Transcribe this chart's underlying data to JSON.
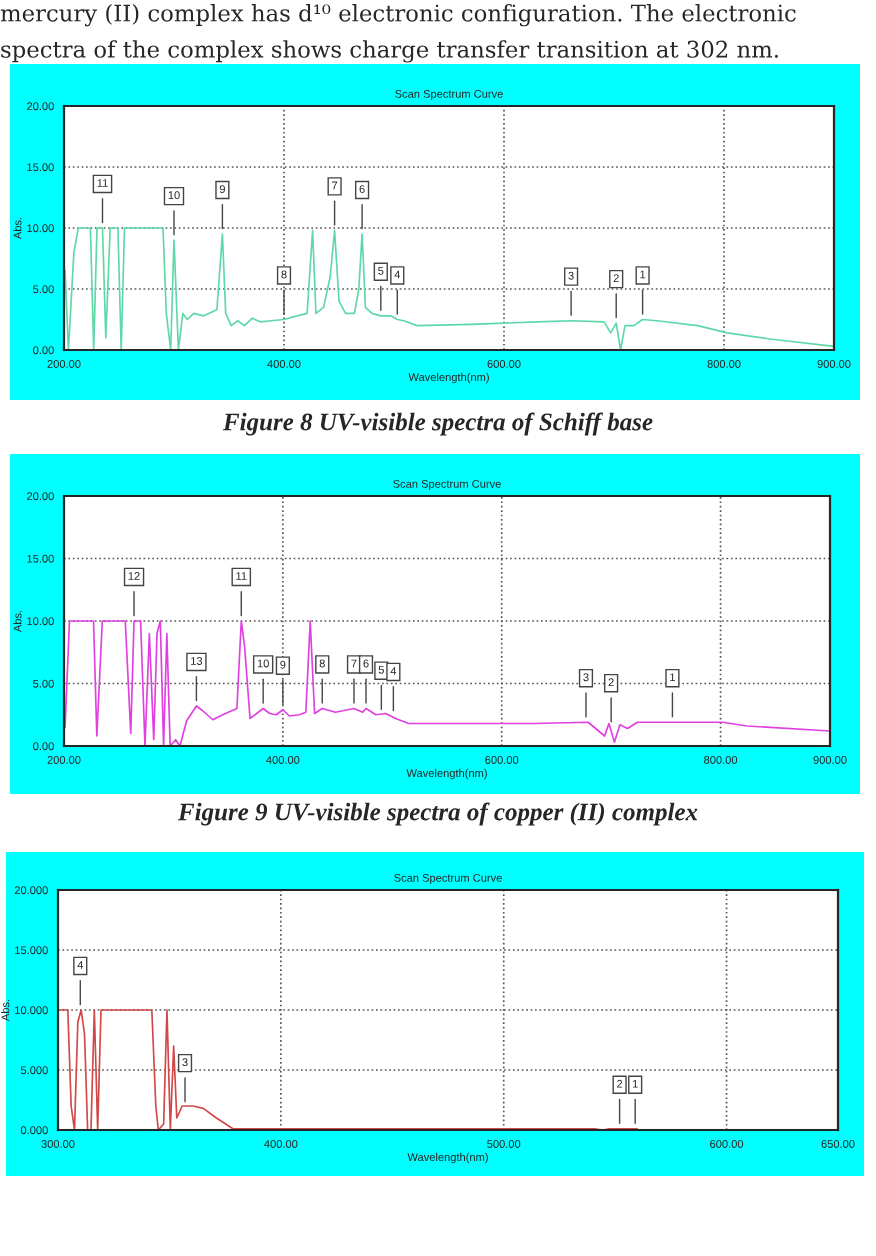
{
  "chart_data": [
    {
      "type": "line",
      "title": "Scan Spectrum Curve",
      "xlabel": "Wavelength(nm)",
      "ylabel": "Abs.",
      "xlim": [
        200,
        900
      ],
      "ylim": [
        0,
        20
      ],
      "xticks": [
        {
          "value": 200,
          "label": "200.00"
        },
        {
          "value": 400,
          "label": "400.00"
        },
        {
          "value": 600,
          "label": "600.00"
        },
        {
          "value": 800,
          "label": "800.00"
        },
        {
          "value": 900,
          "label": "900.00"
        }
      ],
      "yticks": [
        {
          "value": 0,
          "label": "0.00"
        },
        {
          "value": 5,
          "label": "5.00"
        },
        {
          "value": 10,
          "label": "10.00"
        },
        {
          "value": 15,
          "label": "15.00"
        },
        {
          "value": 20,
          "label": "20.00"
        }
      ],
      "grid": true,
      "series": [
        {
          "color": "#5fd8a8",
          "x": [
            201,
            204,
            209,
            213,
            224,
            227,
            230,
            235,
            238,
            242,
            249,
            252,
            255,
            290,
            293,
            297,
            300,
            304,
            308,
            312,
            318,
            327,
            339,
            344,
            347,
            352,
            358,
            364,
            371,
            379,
            388,
            400,
            412,
            421,
            426,
            429,
            436,
            442,
            446,
            450,
            456,
            464,
            468,
            471,
            474,
            480,
            488,
            497,
            503,
            509,
            521,
            570,
            630,
            661,
            691,
            697,
            702,
            706,
            710,
            718,
            726,
            739,
            776,
            803,
            842,
            900
          ],
          "values": [
            6.5,
            0,
            8,
            10,
            10,
            0,
            10,
            10,
            1,
            10,
            10,
            0,
            10,
            10,
            3,
            0,
            9,
            0,
            3,
            2.5,
            3,
            2.8,
            3.3,
            9.5,
            3,
            2,
            2.4,
            2,
            2.6,
            2.3,
            2.4,
            2.5,
            2.8,
            3,
            9.8,
            3,
            3.5,
            6,
            9.8,
            4,
            3,
            3,
            5,
            9.5,
            3.5,
            3,
            2.8,
            2.8,
            2.5,
            2.4,
            2,
            2.1,
            2.3,
            2.4,
            2.3,
            1.4,
            2.2,
            0,
            2,
            2,
            2.5,
            2.4,
            2,
            1.4,
            0.9,
            0.3
          ]
        }
      ],
      "annotations": [
        "mercury (II) complex has d¹⁰ electronic configuration. The electronic spectra of the complex shows charge transfer transition at 302 nm.",
        "Figure 8 UV-visible spectra of Schiff base",
        {
          "text": "11",
          "x": 235,
          "y": 10
        },
        {
          "text": "10",
          "x": 300,
          "y": 9
        },
        {
          "text": "9",
          "x": 344,
          "y": 9.5
        },
        {
          "text": "8",
          "x": 400,
          "y": 2.5
        },
        {
          "text": "7",
          "x": 446,
          "y": 9.8
        },
        {
          "text": "6",
          "x": 471,
          "y": 9.5
        },
        {
          "text": "5",
          "x": 488,
          "y": 2.8
        },
        {
          "text": "4",
          "x": 503,
          "y": 2.5
        },
        {
          "text": "3",
          "x": 661,
          "y": 2.4
        },
        {
          "text": "2",
          "x": 702,
          "y": 2.2
        },
        {
          "text": "1",
          "x": 726,
          "y": 2.5
        }
      ]
    },
    {
      "type": "line",
      "title": "Scan Spectrum Curve",
      "xlabel": "Wavelength(nm)",
      "ylabel": "Abs.",
      "xlim": [
        200,
        900
      ],
      "ylim": [
        0,
        20
      ],
      "xticks": [
        {
          "value": 200,
          "label": "200.00"
        },
        {
          "value": 400,
          "label": "400.00"
        },
        {
          "value": 600,
          "label": "600.00"
        },
        {
          "value": 800,
          "label": "800.00"
        },
        {
          "value": 900,
          "label": "900.00"
        }
      ],
      "yticks": [
        {
          "value": 0,
          "label": "0.00"
        },
        {
          "value": 5,
          "label": "5.00"
        },
        {
          "value": 10,
          "label": "10.00"
        },
        {
          "value": 15,
          "label": "15.00"
        },
        {
          "value": 20,
          "label": "20.00"
        }
      ],
      "grid": true,
      "series": [
        {
          "color": "#e040e0",
          "x": [
            201,
            205,
            227,
            230,
            235,
            256,
            261,
            264,
            270,
            274,
            278,
            282,
            285,
            288,
            291,
            294,
            297,
            302,
            306,
            312,
            321,
            327,
            336,
            345,
            358,
            362,
            365,
            370,
            376,
            382,
            388,
            394,
            400,
            406,
            415,
            421,
            425,
            429,
            436,
            448,
            465,
            473,
            476,
            485,
            494,
            503,
            515,
            570,
            630,
            679,
            694,
            698,
            703,
            708,
            715,
            724,
            756,
            802,
            824,
            900
          ],
          "values": [
            1.5,
            10,
            10,
            0.8,
            10,
            10,
            1,
            10,
            10,
            0,
            9,
            0.5,
            9,
            10,
            0,
            9,
            0,
            0.5,
            0,
            2,
            3.2,
            2.8,
            2.1,
            2.5,
            3,
            10,
            8,
            2.2,
            2.6,
            3,
            2.6,
            2.5,
            2.9,
            2.4,
            2.5,
            2.7,
            10,
            2.6,
            3,
            2.7,
            3,
            2.7,
            3,
            2.5,
            2.6,
            2.2,
            1.8,
            1.8,
            1.8,
            1.9,
            0.8,
            1.8,
            0.3,
            1.7,
            1.4,
            1.9,
            1.9,
            1.9,
            1.6,
            1.2
          ]
        }
      ],
      "annotations": [
        "Figure 9 UV-visible spectra of copper (II) complex",
        {
          "text": "12",
          "x": 264,
          "y": 10
        },
        {
          "text": "13",
          "x": 321,
          "y": 3.2
        },
        {
          "text": "11",
          "x": 362,
          "y": 10
        },
        {
          "text": "10",
          "x": 382,
          "y": 3
        },
        {
          "text": "9",
          "x": 400,
          "y": 2.9
        },
        {
          "text": "8",
          "x": 436,
          "y": 3
        },
        {
          "text": "7",
          "x": 465,
          "y": 3
        },
        {
          "text": "6",
          "x": 476,
          "y": 3
        },
        {
          "text": "5",
          "x": 490,
          "y": 2.5
        },
        {
          "text": "4",
          "x": 501,
          "y": 2.4
        },
        {
          "text": "3",
          "x": 677,
          "y": 1.9
        },
        {
          "text": "2",
          "x": 700,
          "y": 1.5
        },
        {
          "text": "1",
          "x": 756,
          "y": 1.9
        }
      ]
    },
    {
      "type": "line",
      "title": "Scan Spectrum Curve",
      "xlabel": "Wavelength(nm)",
      "ylabel": "Abs.",
      "xlim": [
        300,
        650
      ],
      "ylim": [
        0,
        20
      ],
      "xticks": [
        {
          "value": 300,
          "label": "300.00"
        },
        {
          "value": 400,
          "label": "400.00"
        },
        {
          "value": 500,
          "label": "500.00"
        },
        {
          "value": 600,
          "label": "600.00"
        },
        {
          "value": 650,
          "label": "650.00"
        }
      ],
      "yticks": [
        {
          "value": 0,
          "label": "0.000"
        },
        {
          "value": 5,
          "label": "5.000"
        },
        {
          "value": 10,
          "label": "10.000"
        },
        {
          "value": 15,
          "label": "15.000"
        },
        {
          "value": 20,
          "label": "20.000"
        }
      ],
      "grid": true,
      "series": [
        {
          "color": "#d04848",
          "x": [
            300.6,
            304.4,
            305.9,
            307.4,
            308.9,
            310.4,
            311.9,
            313.3,
            314.8,
            316.3,
            317.8,
            319.3,
            320.7,
            342.1,
            343.9,
            345,
            347.4,
            348.9,
            350.4,
            351.9,
            353.3,
            355.7,
            360.7,
            365.2,
            371.1,
            378.5,
            394.8,
            454.1,
            540.9,
            544.4,
            547.4,
            551.9,
            559.9
          ],
          "values": [
            10,
            10,
            2,
            0,
            9,
            10,
            8,
            0,
            0,
            10,
            0,
            10,
            10,
            10,
            2,
            0,
            0.5,
            10,
            0,
            7,
            1,
            2,
            2,
            1.8,
            1,
            0.1,
            0.1,
            0.1,
            0.1,
            0,
            0.1,
            0.1,
            0.1
          ]
        }
      ],
      "annotations": [
        {
          "text": "4",
          "x": 310,
          "y": 10
        },
        {
          "text": "3",
          "x": 357,
          "y": 1.9
        },
        {
          "text": "2",
          "x": 552,
          "y": 0.1
        },
        {
          "text": "1",
          "x": 559,
          "y": 0.1
        }
      ]
    }
  ]
}
